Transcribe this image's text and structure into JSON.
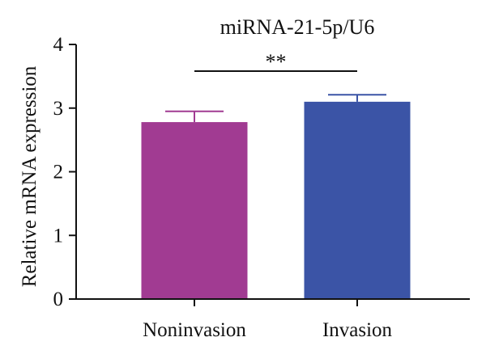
{
  "chart_data": {
    "type": "bar",
    "title": "miRNA-21-5p/U6",
    "xlabel": "",
    "ylabel": "Relative mRNA expression",
    "categories": [
      "Noninvasion",
      "Invasion"
    ],
    "values": [
      2.78,
      3.1
    ],
    "error_upper": [
      2.95,
      3.21
    ],
    "ylim": [
      0,
      4
    ],
    "yticks": [
      "0",
      "1",
      "2",
      "3",
      "4"
    ],
    "bar_colors": [
      "#a13b92",
      "#3b54a6"
    ],
    "error_colors": [
      "#a13b92",
      "#3b54a6"
    ],
    "grid": false,
    "legend": false,
    "significance": {
      "label": "**",
      "between": [
        "Noninvasion",
        "Invasion"
      ]
    }
  }
}
